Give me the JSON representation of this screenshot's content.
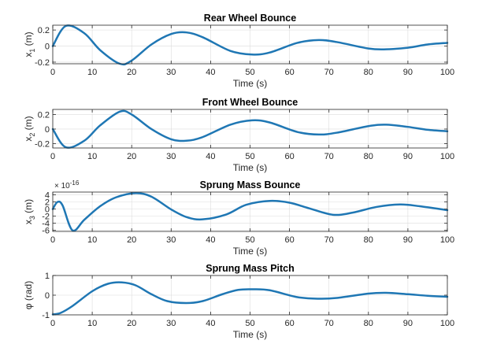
{
  "chart_data": [
    {
      "type": "line",
      "title": "Rear Wheel Bounce",
      "xlabel": "Time (s)",
      "ylabel_main": "x",
      "ylabel_sub": "1",
      "ylabel_unit": " (m)",
      "xlim": [
        0,
        100
      ],
      "ylim": [
        -0.22,
        0.26
      ],
      "xticks": [
        0,
        10,
        20,
        30,
        40,
        50,
        60,
        70,
        80,
        90,
        100
      ],
      "xticklabels": [
        "0",
        "10",
        "20",
        "30",
        "40",
        "50",
        "60",
        "70",
        "80",
        "90",
        "100"
      ],
      "yticks": [
        -0.2,
        0,
        0.2
      ],
      "yticklabels": [
        "-0.2",
        "0",
        "0.2"
      ],
      "exponent_label": "",
      "grid": true,
      "color": "#1f77b4",
      "series": [
        {
          "x": [
            0,
            3.3,
            8,
            12,
            17,
            20,
            25,
            30,
            33.9,
            38,
            45,
            50.5,
            55,
            62,
            67.4,
            72,
            80,
            84.5,
            90,
            95,
            100
          ],
          "y": [
            0,
            0.25,
            0.16,
            -0.05,
            -0.22,
            -0.18,
            0.02,
            0.15,
            0.17,
            0.11,
            -0.06,
            -0.105,
            -0.08,
            0.04,
            0.075,
            0.05,
            -0.03,
            -0.04,
            -0.02,
            0.02,
            0.04
          ]
        }
      ]
    },
    {
      "type": "line",
      "title": "Front Wheel Bounce",
      "xlabel": "Time (s)",
      "ylabel_main": "x",
      "ylabel_sub": "2",
      "ylabel_unit": " (m)",
      "xlim": [
        0,
        100
      ],
      "ylim": [
        -0.26,
        0.27
      ],
      "xticks": [
        0,
        10,
        20,
        30,
        40,
        50,
        60,
        70,
        80,
        90,
        100
      ],
      "xticklabels": [
        "0",
        "10",
        "20",
        "30",
        "40",
        "50",
        "60",
        "70",
        "80",
        "90",
        "100"
      ],
      "yticks": [
        -0.2,
        0,
        0.2
      ],
      "yticklabels": [
        "-0.2",
        "0",
        "0.2"
      ],
      "exponent_label": "",
      "grid": true,
      "color": "#1f77b4",
      "series": [
        {
          "x": [
            0,
            3.3,
            8,
            12,
            17,
            20,
            25,
            30,
            33.9,
            38,
            45,
            50.5,
            55,
            62,
            67.4,
            72,
            80,
            84.5,
            90,
            95,
            100
          ],
          "y": [
            0,
            -0.25,
            -0.16,
            0.05,
            0.24,
            0.2,
            0.0,
            -0.14,
            -0.16,
            -0.11,
            0.06,
            0.12,
            0.09,
            -0.04,
            -0.075,
            -0.05,
            0.04,
            0.06,
            0.03,
            -0.01,
            -0.03
          ]
        }
      ]
    },
    {
      "type": "line",
      "title": "Sprung Mass Bounce",
      "xlabel": "Time (s)",
      "ylabel_main": "x",
      "ylabel_sub": "3",
      "ylabel_unit": " (m)",
      "xlim": [
        0,
        100
      ],
      "ylim": [
        -6.3,
        4.8
      ],
      "xticks": [
        0,
        10,
        20,
        30,
        40,
        50,
        60,
        70,
        80,
        90,
        100
      ],
      "xticklabels": [
        "0",
        "10",
        "20",
        "30",
        "40",
        "50",
        "60",
        "70",
        "80",
        "90",
        "100"
      ],
      "yticks": [
        -6,
        -4,
        -2,
        0,
        2,
        4
      ],
      "yticklabels": [
        "-6",
        "-4",
        "-2",
        "0",
        "2",
        "4"
      ],
      "exponent_label": "× 10",
      "exponent_power": "-16",
      "grid": true,
      "color": "#1f77b4",
      "series": [
        {
          "x": [
            0,
            1.2,
            2.5,
            5,
            8,
            12,
            16,
            21,
            25,
            30,
            34,
            38,
            44,
            49,
            55,
            60,
            65,
            71,
            76,
            82,
            88,
            93,
            100
          ],
          "y": [
            0,
            2,
            1,
            -6,
            -3,
            0.8,
            3.3,
            4.5,
            3.5,
            -0.1,
            -2.3,
            -2.9,
            -1.5,
            1.2,
            2.3,
            1.8,
            0.2,
            -1.6,
            -1.0,
            0.6,
            1.3,
            0.8,
            -0.3
          ]
        }
      ]
    },
    {
      "type": "line",
      "title": "Sprung Mass Pitch",
      "xlabel": "Time (s)",
      "ylabel_main": "φ",
      "ylabel_sub": "",
      "ylabel_unit": " (rad)",
      "xlim": [
        0,
        100
      ],
      "ylim": [
        -1,
        1
      ],
      "xticks": [
        0,
        10,
        20,
        30,
        40,
        50,
        60,
        70,
        80,
        90,
        100
      ],
      "xticklabels": [
        "0",
        "10",
        "20",
        "30",
        "40",
        "50",
        "60",
        "70",
        "80",
        "90",
        "100"
      ],
      "yticks": [
        -1,
        0,
        1
      ],
      "yticklabels": [
        "-1",
        "0",
        "1"
      ],
      "exponent_label": "",
      "grid": true,
      "color": "#1f77b4",
      "series": [
        {
          "x": [
            0,
            2,
            5,
            10,
            14,
            17.5,
            21,
            25,
            29,
            33.8,
            38,
            43,
            47,
            50.6,
            55,
            62,
            67.5,
            72,
            80,
            84.5,
            90,
            95,
            100
          ],
          "y": [
            -0.98,
            -0.9,
            -0.55,
            0.2,
            0.58,
            0.65,
            0.5,
            0.05,
            -0.3,
            -0.4,
            -0.3,
            0.05,
            0.27,
            0.3,
            0.25,
            -0.1,
            -0.18,
            -0.14,
            0.08,
            0.12,
            0.05,
            -0.03,
            -0.08
          ]
        }
      ]
    }
  ]
}
